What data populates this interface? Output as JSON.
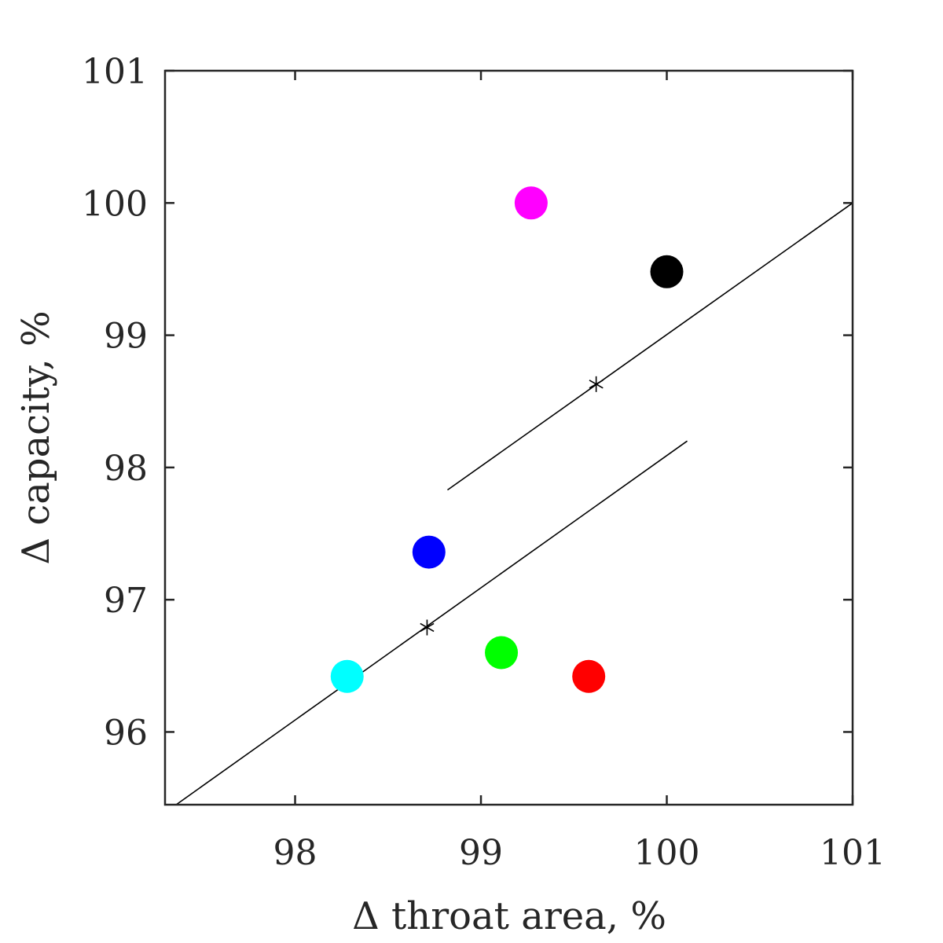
{
  "chart_data": {
    "type": "scatter",
    "title": "",
    "xlabel": "Δ throat area, %",
    "ylabel": "Δ capacity, %",
    "xlim": [
      97.3,
      101
    ],
    "ylim": [
      95.45,
      101
    ],
    "xticks": [
      98,
      99,
      100,
      101
    ],
    "yticks": [
      96,
      97,
      98,
      99,
      100,
      101
    ],
    "xtick_labels": [
      "98",
      "99",
      "100",
      "101"
    ],
    "ytick_labels": [
      "96",
      "97",
      "98",
      "99",
      "100",
      "101"
    ],
    "grid": false,
    "points": [
      {
        "x": 99.27,
        "y": 100.0,
        "color": "#ff00ff"
      },
      {
        "x": 100.0,
        "y": 99.48,
        "color": "#000000"
      },
      {
        "x": 98.72,
        "y": 97.36,
        "color": "#0000ff"
      },
      {
        "x": 98.28,
        "y": 96.42,
        "color": "#00ffff"
      },
      {
        "x": 99.11,
        "y": 96.6,
        "color": "#00ff00"
      },
      {
        "x": 99.58,
        "y": 96.42,
        "color": "#ff0000"
      }
    ],
    "lines": [
      {
        "x": [
          98.82,
          101.0
        ],
        "y": [
          97.83,
          100.0
        ],
        "color": "#000000"
      },
      {
        "x": [
          97.36,
          100.11
        ],
        "y": [
          95.45,
          98.2
        ],
        "color": "#000000"
      }
    ],
    "star_markers": [
      {
        "x": 99.62,
        "y": 98.63,
        "color": "#000000"
      },
      {
        "x": 98.71,
        "y": 96.79,
        "color": "#000000"
      }
    ]
  }
}
